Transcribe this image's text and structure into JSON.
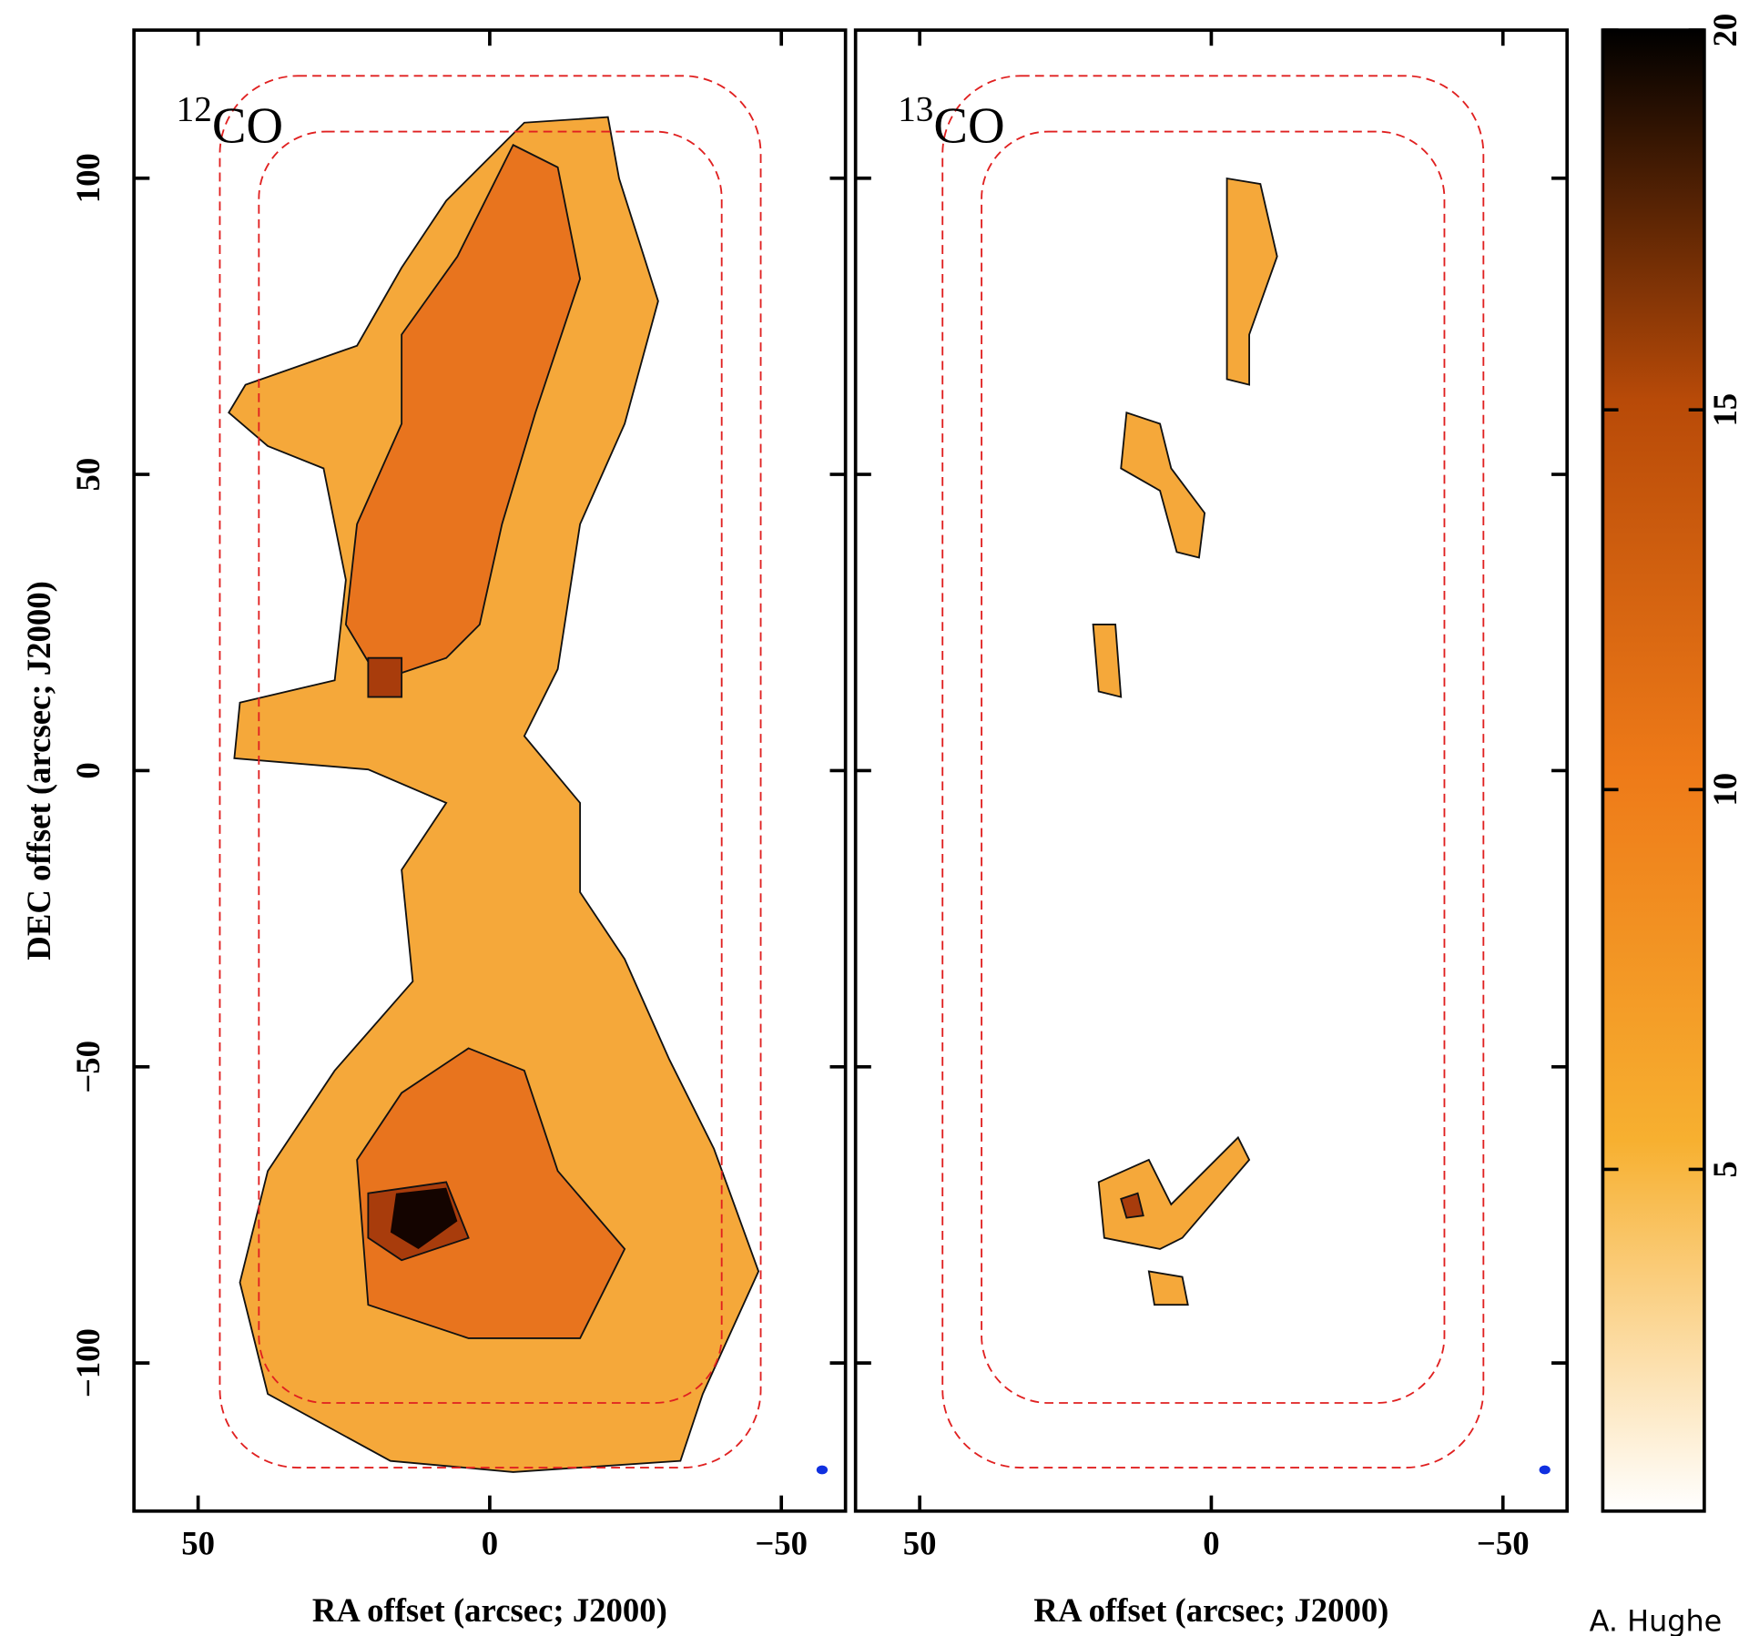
{
  "chart_data": [
    {
      "type": "image",
      "label_mass": "12",
      "label_species": "CO",
      "xlabel": "RA offset (arcsec; J2000)",
      "ylabel": "DEC offset (arcsec; J2000)",
      "xlim": [
        61,
        -61
      ],
      "ylim": [
        -125,
        125
      ],
      "xticks": [
        50,
        0,
        {
          "value": -50,
          "label": "−50"
        }
      ],
      "yticks": [
        {
          "value": -100,
          "label": "−100"
        },
        {
          "value": -50,
          "label": "−50"
        },
        0,
        50,
        100
      ],
      "ytick_labels": true
    },
    {
      "type": "image",
      "label_mass": "13",
      "label_species": "CO",
      "xlabel": "RA offset (arcsec; J2000)",
      "xlim": [
        61,
        -61
      ],
      "ylim": [
        -125,
        125
      ],
      "xticks": [
        50,
        0,
        {
          "value": -50,
          "label": "−50"
        }
      ],
      "yticks": [
        -100,
        -50,
        0,
        50,
        100
      ],
      "ytick_labels": false
    },
    {
      "type": "colorbar",
      "clim": [
        0.5,
        20
      ],
      "yticks": [
        5,
        10,
        15,
        20
      ],
      "colormap": [
        "#ffffff",
        "#f7b030",
        "#ee7a18",
        "#b84a08",
        "#000000"
      ]
    }
  ],
  "credit": "A. Hughe"
}
